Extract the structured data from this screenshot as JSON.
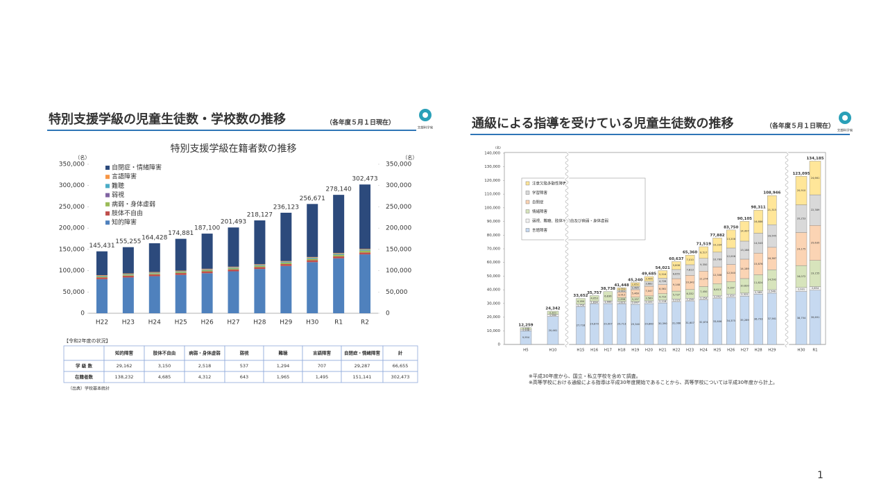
{
  "slide": {
    "left_title": "特別支援学級の児童生徒数・学校数の推移",
    "left_subtitle": "（各年度５月１日現在）",
    "right_title": "通級による指導を受けている児童生徒数の推移",
    "right_subtitle": "（各年度５月１日現在）",
    "logo_text": "文部科学省",
    "page_number": "1"
  },
  "chart_data": [
    {
      "type": "bar",
      "stacked": true,
      "title": "特別支援学級在籍者数の推移",
      "y_unit": "（名）",
      "y2_unit": "（名）",
      "legend": "upper left",
      "categories": [
        "H22",
        "H23",
        "H24",
        "H25",
        "H26",
        "H27",
        "H28",
        "H29",
        "H30",
        "R1",
        "R2"
      ],
      "series": [
        {
          "name": "知的障害",
          "color": "#4f81bd",
          "values": [
            80000,
            84000,
            87000,
            90000,
            94000,
            98500,
            104000,
            111000,
            120000,
            129000,
            138232
          ]
        },
        {
          "name": "肢体不自由",
          "color": "#c0504d",
          "values": [
            4300,
            4300,
            4350,
            4400,
            4400,
            4450,
            4500,
            4550,
            4600,
            4650,
            4685
          ]
        },
        {
          "name": "病弱・身体虚弱",
          "color": "#9bbb59",
          "values": [
            2000,
            2100,
            2200,
            2400,
            2600,
            2800,
            3000,
            3300,
            3600,
            4000,
            4312
          ]
        },
        {
          "name": "弱視",
          "color": "#8064a2",
          "values": [
            400,
            420,
            440,
            460,
            480,
            500,
            520,
            550,
            580,
            610,
            643
          ]
        },
        {
          "name": "難聴",
          "color": "#4bacc6",
          "values": [
            1200,
            1250,
            1300,
            1350,
            1400,
            1500,
            1600,
            1700,
            1800,
            1900,
            1965
          ]
        },
        {
          "name": "言語障害",
          "color": "#f79646",
          "values": [
            1500,
            1500,
            1500,
            1500,
            1500,
            1500,
            1500,
            1500,
            1500,
            1500,
            1495
          ]
        },
        {
          "name": "自閉症・情緒障害",
          "color": "#2c4a7c",
          "values": [
            56031,
            61685,
            67638,
            74771,
            82720,
            92243,
            103007,
            113523,
            124591,
            136480,
            151141
          ]
        }
      ],
      "totals": [
        145431,
        155255,
        164428,
        174881,
        187100,
        201493,
        218127,
        236123,
        256671,
        278140,
        302473
      ],
      "total_labels": [
        "145,431",
        "155,255",
        "164,428",
        "174,881",
        "187,100",
        "201,493",
        "218,127",
        "236,123",
        "256,671",
        "278,140",
        "302,473"
      ],
      "ylim": [
        0,
        350000
      ],
      "yticks": [
        0,
        {
          "value": 50000,
          "label": "50,000"
        },
        {
          "value": 100000,
          "label": "100,000"
        },
        {
          "value": 150000,
          "label": "150,000"
        },
        {
          "value": 200000,
          "label": "200,000"
        },
        {
          "value": 250000,
          "label": "250,000"
        },
        {
          "value": 300000,
          "label": "300,000"
        },
        {
          "value": 350000,
          "label": "350,000"
        }
      ],
      "y2lim": [
        0,
        350000
      ],
      "y2ticks": [
        0,
        {
          "value": 50000,
          "label": "50,000"
        },
        {
          "value": 100000,
          "label": "100,000"
        },
        {
          "value": 150000,
          "label": "150,000"
        },
        {
          "value": 200000,
          "label": "200,000"
        },
        {
          "value": 250000,
          "label": "250,000"
        },
        {
          "value": 300000,
          "label": "300,000"
        },
        {
          "value": 350000,
          "label": "350,000"
        }
      ]
    },
    {
      "type": "bar",
      "stacked": true,
      "y_unit": "(名)",
      "legend": "upper left",
      "categories": [
        "H5",
        "H10",
        "H15",
        "H16",
        "H17",
        "H18",
        "H19",
        "H20",
        "H21",
        "H22",
        "H23",
        "H24",
        "H25",
        "H26",
        "H27",
        "H28",
        "H29",
        "H30",
        "R1"
      ],
      "series": [
        {
          "name": "言語障害",
          "color": "#c6d9f0",
          "values": [
            9954,
            20461,
            27718,
            29870,
            29907,
            29713,
            29340,
            29860,
            30390,
            31066,
            31607,
            32674,
            33606,
            34375,
            35289,
            36793,
            37561,
            38754,
            39691
          ],
          "value_labels": [
            "9,954",
            "20,461",
            "27,718",
            "29,870",
            "29,907",
            "29,713",
            "29,340",
            "29,860",
            "30,390",
            "31,066",
            "31,607",
            "32,674",
            "33,606",
            "34,375",
            "35,289",
            "36,793",
            "37,561",
            "38,754",
            "39,691"
          ]
        },
        {
          "name": "弱視、難聴、肢体不自由及び病弱・身体虚弱",
          "color": "#f2f2f2",
          "values": [
            1106,
            1560,
            1750,
            1834,
            1995,
            1823,
            2097,
            2101,
            2118,
            2223,
            2256,
            2254,
            2252,
            2424,
            2322,
            2389,
            2546,
            2931,
            2654
          ],
          "value_labels": [
            "1,106",
            "1,560",
            "1,750",
            "1,834",
            "1,995",
            "1,823",
            "2,097",
            "2,101",
            "2,118",
            "2,223",
            "2,256",
            "2,254",
            "2,252",
            "2,424",
            "2,322",
            "2,389",
            "2,546",
            "2,931",
            "2,654"
          ]
        },
        {
          "name": "情緒障害",
          "color": "#d7e4bc",
          "values": [
            1199,
            2321,
            4184,
            4053,
            6836,
            2898,
            3197,
            3589,
            4710,
            5737,
            6332,
            7450,
            8613,
            9197,
            10620,
            11824,
            14592,
            16072,
            19155
          ],
          "value_labels": [
            "1,199",
            "2,321",
            "4,184",
            "4,053",
            "6,836",
            "2,898",
            "3,197",
            "3,589",
            "4,710",
            "5,737",
            "6,332",
            "7,450",
            "8,613",
            "9,197",
            "10,620",
            "11,824",
            "14,592",
            "16,072",
            "19,155"
          ]
        },
        {
          "name": "自閉症",
          "color": "#fbd4b4",
          "values": [
            null,
            null,
            null,
            null,
            null,
            3912,
            5469,
            7047,
            6561,
            9148,
            10342,
            11274,
            12308,
            12540,
            14189,
            15876,
            16387,
            24175,
            25635
          ],
          "value_labels": [
            null,
            null,
            null,
            null,
            null,
            "3,912",
            "5,469",
            "7,047",
            "6,561",
            "9,148",
            "10,342",
            "11,274",
            "12,308",
            "12,540",
            "14,189",
            "15,876",
            "16,387",
            "24,175",
            "25,635"
          ]
        },
        {
          "name": "学習障害",
          "color": "#d9d9d9",
          "values": [
            null,
            null,
            null,
            null,
            null,
            1351,
            2485,
            3682,
            4726,
            6655,
            7813,
            9350,
            10769,
            12006,
            13188,
            14543,
            16545,
            20253,
            22389
          ],
          "value_labels": [
            null,
            null,
            null,
            null,
            null,
            "1,351",
            "2,485",
            "3,682",
            "4,726",
            "6,655",
            "7,813",
            "9,350",
            "10,769",
            "12,006",
            "13,188",
            "14,543",
            "16,545",
            "20,253",
            "22,389"
          ]
        },
        {
          "name": "注意欠陥多動性障害",
          "color": "#ffe699",
          "values": [
            null,
            null,
            null,
            null,
            null,
            1751,
            2652,
            3406,
            5516,
            5808,
            7010,
            8517,
            10334,
            13208,
            14497,
            16886,
            21315,
            20910,
            24661
          ],
          "value_labels": [
            null,
            null,
            null,
            null,
            null,
            "1,751",
            "2,652",
            "3,406",
            "5,516",
            "5,808",
            "7,010",
            "8,517",
            "10,334",
            "13,208",
            "14,497",
            "16,886",
            "21,315",
            "20,910",
            "24,661"
          ]
        }
      ],
      "totals": [
        12259,
        24342,
        33652,
        35757,
        38738,
        41448,
        45240,
        49685,
        54021,
        60637,
        65360,
        71519,
        77882,
        83750,
        90105,
        98311,
        108946,
        123095,
        134185
      ],
      "total_labels": [
        "12,259",
        "24,342",
        "33,652",
        "35,757",
        "38,738",
        "41,448",
        "45,240",
        "49,685",
        "54,021",
        "60,637",
        "65,360",
        "71,519",
        "77,882",
        "83,750",
        "90,105",
        "98,311",
        "108,946",
        "123,095",
        "134,185"
      ],
      "ylim": [
        0,
        140000
      ],
      "yticks": [
        0,
        {
          "value": 10000,
          "label": "10,000"
        },
        {
          "value": 20000,
          "label": "20,000"
        },
        {
          "value": 30000,
          "label": "30,000"
        },
        {
          "value": 40000,
          "label": "40,000"
        },
        {
          "value": 50000,
          "label": "50,000"
        },
        {
          "value": 60000,
          "label": "60,000"
        },
        {
          "value": 70000,
          "label": "70,000"
        },
        {
          "value": 80000,
          "label": "80,000"
        },
        {
          "value": 90000,
          "label": "90,000"
        },
        {
          "value": 100000,
          "label": "100,000"
        },
        {
          "value": 110000,
          "label": "110,000"
        },
        {
          "value": 120000,
          "label": "120,000"
        },
        {
          "value": 130000,
          "label": "130,000"
        },
        {
          "value": 140000,
          "label": "140,000"
        }
      ],
      "notes": [
        "※平成30年度から、国立・私立学校を含めて調査。",
        "※高等学校における通級による指導は平成30年度開始であることから、高等学校については平成30年度から計上。"
      ]
    }
  ],
  "table": {
    "caption": "【令和2年度の状況】",
    "header": [
      "知的障害",
      "肢体不自由",
      "病弱・身体虚弱",
      "弱視",
      "難聴",
      "言語障害",
      "自閉症・情緒障害",
      "計"
    ],
    "rows": [
      {
        "label": "学 級 数",
        "cells": [
          "29,162",
          "3,150",
          "2,518",
          "537",
          "1,294",
          "707",
          "29,287",
          "66,655"
        ]
      },
      {
        "label": "在籍者数",
        "cells": [
          "138,232",
          "4,685",
          "4,312",
          "643",
          "1,965",
          "1,495",
          "151,141",
          "302,473"
        ]
      }
    ],
    "source": "（出典）学校基本統計"
  }
}
